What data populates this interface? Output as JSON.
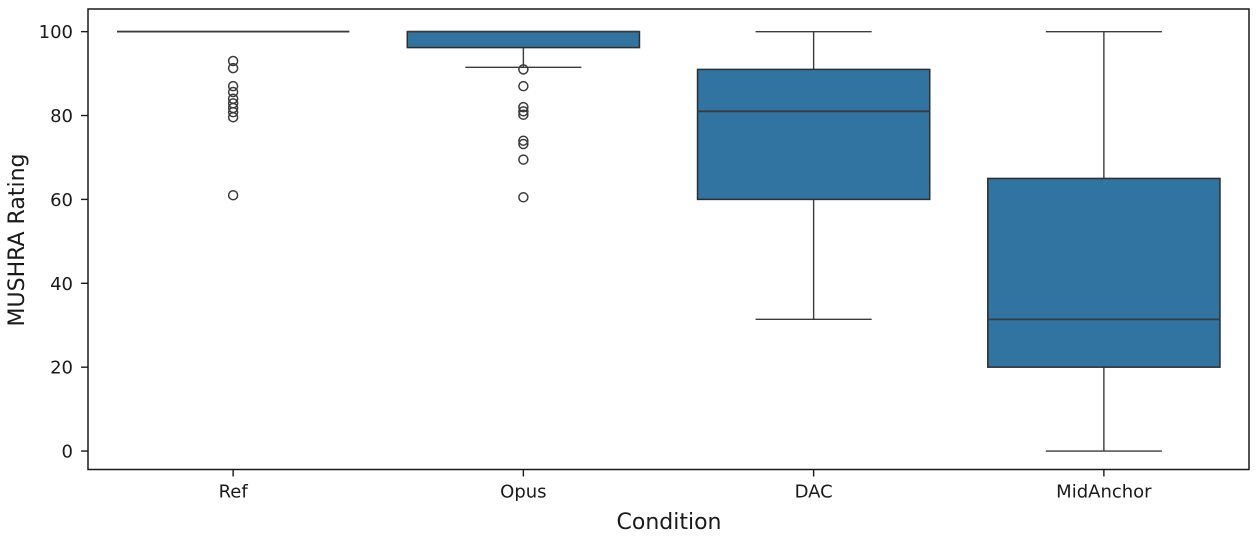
{
  "figure": {
    "background_color": "#ffffff"
  },
  "chart_data": {
    "type": "boxplot",
    "title": "",
    "xlabel": "Condition",
    "ylabel": "MUSHRA Rating",
    "categories": [
      "Ref",
      "Opus",
      "DAC",
      "MidAnchor"
    ],
    "y_ticks": [
      0,
      20,
      40,
      60,
      80,
      100
    ],
    "ylim": [
      -4.4,
      105.4
    ],
    "grid": false,
    "legend": null,
    "colors": {
      "box_fill": "#3274a1",
      "box_edge": "#2e2e2e",
      "whisker": "#3b3b3b",
      "median": "#3b3b3b",
      "outlier_edge": "#3b3b3b",
      "spine": "#1a1a1a",
      "tick_text": "#1a1a1a"
    },
    "series": [
      {
        "name": "Ref",
        "whislo": 100,
        "q1": 100,
        "med": 100,
        "q3": 100,
        "whishi": 100,
        "outliers": [
          93,
          91.3,
          87,
          85.6,
          84,
          82.9,
          81.8,
          80.8,
          79.6,
          61
        ]
      },
      {
        "name": "Opus",
        "whislo": 91.5,
        "q1": 96.2,
        "med": 100,
        "q3": 100,
        "whishi": 100,
        "outliers": [
          91,
          87,
          82,
          81,
          80.2,
          74,
          73.2,
          69.5,
          60.5
        ]
      },
      {
        "name": "DAC",
        "whislo": 31.4,
        "q1": 60,
        "med": 81,
        "q3": 91,
        "whishi": 100,
        "outliers": []
      },
      {
        "name": "MidAnchor",
        "whislo": 0,
        "q1": 20,
        "med": 31.4,
        "q3": 65,
        "whishi": 100,
        "outliers": []
      }
    ]
  }
}
